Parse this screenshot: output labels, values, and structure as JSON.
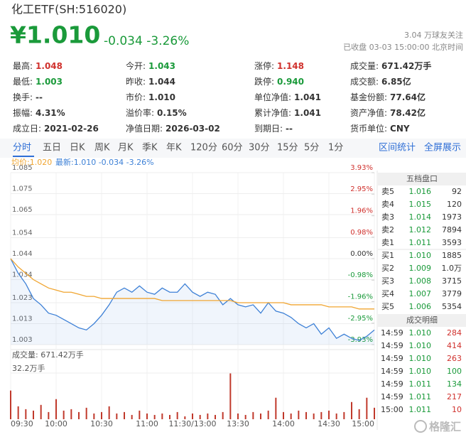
{
  "header": {
    "title": "化工ETF(SH:516020)",
    "price": "¥1.010",
    "change": "-0.034",
    "change_pct": "-3.26%",
    "followers": "3.04 万球友关注",
    "status": "已收盘 03-03 15:00:00 北京时间"
  },
  "stats": [
    [
      {
        "label": "最高:",
        "value": "1.048",
        "color": "#d0312d"
      },
      {
        "label": "今开:",
        "value": "1.043",
        "color": "#1a9a3a"
      },
      {
        "label": "涨停:",
        "value": "1.148",
        "color": "#d0312d"
      },
      {
        "label": "成交量:",
        "value": "671.42万手"
      }
    ],
    [
      {
        "label": "最低:",
        "value": "1.003",
        "color": "#1a9a3a"
      },
      {
        "label": "昨收:",
        "value": "1.044"
      },
      {
        "label": "跌停:",
        "value": "0.940",
        "color": "#1a9a3a"
      },
      {
        "label": "成交额:",
        "value": "6.85亿"
      }
    ],
    [
      {
        "label": "换手:",
        "value": "--"
      },
      {
        "label": "市价:",
        "value": "1.010"
      },
      {
        "label": "单位净值:",
        "value": "1.041"
      },
      {
        "label": "基金份额:",
        "value": "77.64亿"
      }
    ],
    [
      {
        "label": "振幅:",
        "value": "4.31%"
      },
      {
        "label": "溢价率:",
        "value": "0.15%"
      },
      {
        "label": "累计净值:",
        "value": "1.041"
      },
      {
        "label": "资产净值:",
        "value": "78.42亿"
      }
    ],
    [
      {
        "label": "成立日:",
        "value": "2021-02-26"
      },
      {
        "label": "净值日期:",
        "value": "2026-03-02"
      },
      {
        "label": "到期日:",
        "value": "--"
      },
      {
        "label": "货币单位:",
        "value": "CNY"
      }
    ]
  ],
  "tabs": [
    "分时",
    "五日",
    "日K",
    "周K",
    "月K",
    "季K",
    "年K",
    "120分",
    "60分",
    "30分",
    "15分",
    "5分",
    "1分"
  ],
  "active_tab": 0,
  "tools": [
    "区间统计",
    "全屏展示"
  ],
  "legend": {
    "avg": "均价:1.020",
    "latest": "最新:1.010 -0.034 -3.26%"
  },
  "chart_data": [
    {
      "type": "line",
      "x": [
        0,
        5,
        10,
        15,
        20,
        25,
        30,
        35,
        40,
        45,
        50,
        55,
        60,
        65,
        70,
        75,
        80,
        85,
        90,
        95,
        100,
        105,
        110,
        115,
        120,
        125,
        130,
        135,
        140,
        145,
        150,
        155,
        160,
        165,
        170,
        175,
        180,
        185,
        190,
        195,
        200,
        205,
        210,
        215,
        220,
        225,
        230,
        235,
        240
      ],
      "xlim": [
        0,
        240
      ],
      "ylim": [
        1.003,
        1.085
      ],
      "yticks": [
        1.085,
        1.075,
        1.065,
        1.054,
        1.044,
        1.034,
        1.023,
        1.013,
        1.003
      ],
      "y2lim": [
        -3.93,
        3.93
      ],
      "y2ticks": [
        {
          "value": 3.93,
          "label": "3.93%"
        },
        {
          "value": 2.95,
          "label": "2.95%"
        },
        {
          "value": 1.96,
          "label": "1.96%"
        },
        {
          "value": 0.98,
          "label": "0.98%"
        },
        {
          "value": 0,
          "label": "0.00%"
        },
        {
          "value": -0.98,
          "label": "-0.98%"
        },
        {
          "value": -1.96,
          "label": "-1.96%"
        },
        {
          "value": -2.95,
          "label": "-2.95%"
        },
        {
          "value": -3.93,
          "label": "-3.93%"
        }
      ],
      "grid": true,
      "series": [
        {
          "color": "#3d80d6",
          "values": [
            1.044,
            1.037,
            1.032,
            1.025,
            1.022,
            1.018,
            1.017,
            1.015,
            1.013,
            1.011,
            1.01,
            1.013,
            1.017,
            1.022,
            1.028,
            1.03,
            1.028,
            1.031,
            1.028,
            1.027,
            1.03,
            1.028,
            1.028,
            1.032,
            1.028,
            1.026,
            1.028,
            1.027,
            1.022,
            1.025,
            1.022,
            1.021,
            1.022,
            1.018,
            1.023,
            1.019,
            1.018,
            1.016,
            1.013,
            1.011,
            1.013,
            1.008,
            1.011,
            1.006,
            1.008,
            1.006,
            1.005,
            1.007,
            1.01
          ]
        },
        {
          "color": "#f0a530",
          "values": [
            1.044,
            1.04,
            1.037,
            1.034,
            1.032,
            1.03,
            1.029,
            1.028,
            1.028,
            1.027,
            1.026,
            1.026,
            1.025,
            1.025,
            1.025,
            1.025,
            1.025,
            1.025,
            1.025,
            1.025,
            1.024,
            1.024,
            1.024,
            1.024,
            1.024,
            1.024,
            1.024,
            1.024,
            1.024,
            1.024,
            1.023,
            1.023,
            1.023,
            1.023,
            1.023,
            1.023,
            1.023,
            1.022,
            1.022,
            1.022,
            1.022,
            1.022,
            1.021,
            1.021,
            1.021,
            1.021,
            1.02,
            1.02,
            1.02
          ]
        }
      ]
    },
    {
      "type": "bar",
      "title": "成交量: 671.42万手",
      "x": [
        0,
        5,
        10,
        15,
        20,
        25,
        30,
        35,
        40,
        45,
        50,
        55,
        60,
        65,
        70,
        75,
        80,
        85,
        90,
        95,
        100,
        105,
        110,
        115,
        120,
        125,
        130,
        135,
        140,
        145,
        150,
        155,
        160,
        165,
        170,
        175,
        180,
        185,
        190,
        195,
        200,
        205,
        210,
        215,
        220,
        225,
        230,
        235,
        240
      ],
      "values": [
        20,
        9,
        7,
        6,
        10,
        5,
        14,
        6,
        7,
        5,
        8,
        4,
        5,
        9,
        4,
        5,
        3,
        6,
        4,
        3,
        4,
        3,
        5,
        2,
        4,
        3,
        4,
        3,
        5,
        32.2,
        4,
        3,
        5,
        4,
        6,
        15,
        5,
        4,
        6,
        5,
        4,
        5,
        6,
        4,
        5,
        12,
        7,
        15,
        8
      ],
      "color": "#c0392b",
      "xlim": [
        0,
        240
      ],
      "ylim": [
        0,
        32.2
      ],
      "yticks": [
        {
          "value": 32.2,
          "label": "32.2万手"
        }
      ],
      "xticks": [
        {
          "value": 0,
          "label": "09:30"
        },
        {
          "value": 30,
          "label": "10:00"
        },
        {
          "value": 60,
          "label": "10:30"
        },
        {
          "value": 90,
          "label": "11:00"
        },
        {
          "value": 120,
          "label": "11:30/13:00"
        },
        {
          "value": 150,
          "label": "13:30"
        },
        {
          "value": 180,
          "label": "14:00"
        },
        {
          "value": 210,
          "label": "14:30"
        },
        {
          "value": 240,
          "label": "15:00"
        }
      ]
    }
  ],
  "order_book": {
    "title": "五档盘口",
    "rows": [
      [
        "卖5",
        "1.016",
        "92"
      ],
      [
        "卖4",
        "1.015",
        "120"
      ],
      [
        "卖3",
        "1.014",
        "1973"
      ],
      [
        "卖2",
        "1.012",
        "7894"
      ],
      [
        "卖1",
        "1.011",
        "3593"
      ],
      [
        "买1",
        "1.010",
        "1885"
      ],
      [
        "买2",
        "1.009",
        "1.0万"
      ],
      [
        "买3",
        "1.008",
        "3715"
      ],
      [
        "买4",
        "1.007",
        "3779"
      ],
      [
        "买5",
        "1.006",
        "5354"
      ]
    ]
  },
  "trades": {
    "title": "成交明细",
    "rows": [
      {
        "time": "14:59",
        "price": "1.010",
        "volume": "284",
        "color": "#d0312d"
      },
      {
        "time": "14:59",
        "price": "1.010",
        "volume": "414",
        "color": "#d0312d"
      },
      {
        "time": "14:59",
        "price": "1.010",
        "volume": "263",
        "color": "#d0312d"
      },
      {
        "time": "14:59",
        "price": "1.010",
        "volume": "100",
        "color": "#1a9a3a"
      },
      {
        "time": "14:59",
        "price": "1.011",
        "volume": "134",
        "color": "#1a9a3a"
      },
      {
        "time": "14:59",
        "price": "1.011",
        "volume": "217",
        "color": "#d0312d"
      },
      {
        "time": "15:00",
        "price": "1.011",
        "volume": "10",
        "color": "#d0312d"
      }
    ]
  },
  "watermark": "格隆汇"
}
